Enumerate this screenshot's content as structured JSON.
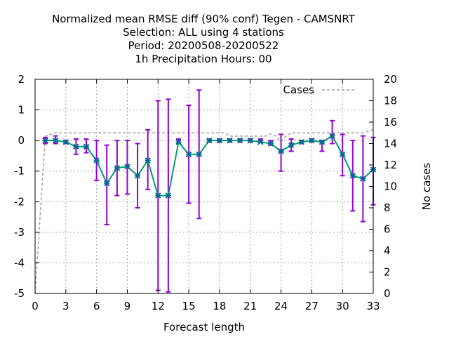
{
  "chart_data": {
    "type": "line",
    "title_lines": [
      "Normalized mean RMSE diff (90% conf) Tegen - CAMSNRT",
      "Selection: ALL using     4 stations",
      "Period: 20200508-20200522",
      "1h Precipitation   Hours:  00"
    ],
    "xlabel": "Forecast length",
    "y2label": "No cases",
    "xlim": [
      0,
      33
    ],
    "ylim": [
      -5,
      2
    ],
    "y2lim": [
      0,
      20
    ],
    "xticks": [
      "0",
      "3",
      "6",
      "9",
      "12",
      "15",
      "18",
      "21",
      "24",
      "27",
      "30",
      "33"
    ],
    "yticks": [
      "2",
      "1",
      "0",
      "-1",
      "-2",
      "-3",
      "-4",
      "-5"
    ],
    "y2ticks": [
      "20",
      "18",
      "16",
      "14",
      "12",
      "10",
      "8",
      "6",
      "4",
      "2",
      "0"
    ],
    "grid": true,
    "legend": {
      "label": "Cases",
      "position": "top-right"
    },
    "colors": {
      "line": "#009e73",
      "marker": "#006b8f",
      "errorbar": "#9400d3",
      "cases": "#a0a0a0"
    },
    "series": [
      {
        "x": [
          1,
          2,
          3,
          4,
          5,
          6,
          7,
          8,
          9,
          10,
          11,
          12,
          13,
          14,
          15,
          16,
          17,
          18,
          19,
          20,
          21,
          22,
          23,
          24,
          25,
          26,
          27,
          28,
          29,
          30,
          31,
          32,
          33
        ],
        "y": [
          0.0,
          0.0,
          -0.05,
          -0.2,
          -0.2,
          -0.65,
          -1.4,
          -0.9,
          -0.85,
          -1.15,
          -0.65,
          -1.8,
          -1.8,
          -0.05,
          -0.45,
          -0.45,
          0.0,
          0.0,
          0.0,
          0.0,
          0.0,
          -0.05,
          -0.1,
          -0.35,
          -0.15,
          -0.05,
          0.0,
          -0.05,
          0.15,
          -0.45,
          -1.15,
          -1.25,
          -0.95
        ],
        "err_low": [
          -0.1,
          -0.1,
          -0.1,
          -0.45,
          -0.4,
          -1.3,
          -2.75,
          -1.8,
          -1.75,
          -2.2,
          -1.6,
          -4.9,
          -4.95,
          -0.1,
          -2.05,
          -2.55,
          -0.05,
          -0.05,
          -0.05,
          -0.05,
          -0.05,
          -0.05,
          -0.15,
          -1.0,
          -0.35,
          -0.1,
          -0.05,
          -0.35,
          -0.1,
          -1.15,
          -2.3,
          -2.65,
          -2.1
        ],
        "err_high": [
          0.1,
          0.15,
          0.0,
          0.05,
          0.05,
          0.0,
          -0.15,
          0.0,
          0.0,
          -0.1,
          0.35,
          1.3,
          1.35,
          0.05,
          1.15,
          1.65,
          0.05,
          0.05,
          0.05,
          0.05,
          0.05,
          0.05,
          0.0,
          0.2,
          0.05,
          0.0,
          0.05,
          0.0,
          0.65,
          0.2,
          0.0,
          0.15,
          0.1
        ]
      }
    ],
    "cases": {
      "name": "Cases",
      "x": [
        0,
        1,
        2,
        3,
        4,
        5,
        6,
        7,
        8,
        9,
        10,
        11,
        12,
        13,
        14,
        15,
        16,
        17,
        18,
        18.5,
        19,
        19.5,
        20,
        21,
        22,
        22.5,
        23,
        23.5,
        24,
        24.5,
        25,
        26,
        27,
        28,
        29,
        30,
        31,
        32,
        33
      ],
      "y": [
        0,
        14.7,
        15,
        15,
        15,
        15,
        15,
        15,
        15,
        15,
        15,
        15,
        15,
        15,
        15,
        15,
        15,
        15,
        15,
        15,
        14.7,
        14.7,
        14.7,
        14.7,
        14.7,
        14.7,
        14.9,
        14.7,
        14.2,
        14.7,
        15,
        15,
        15,
        15,
        15,
        15,
        15,
        15,
        15.3
      ]
    }
  }
}
